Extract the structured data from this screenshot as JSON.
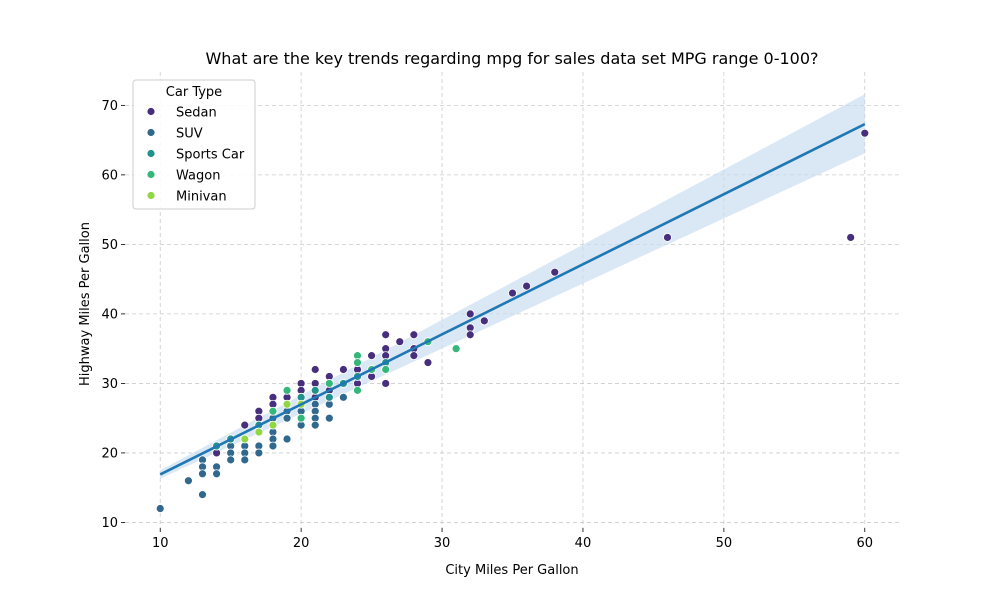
{
  "chart_data": {
    "type": "scatter",
    "title": "What are the key trends regarding mpg for sales data set MPG range 0-100?",
    "xlabel": "City Miles Per Gallon",
    "ylabel": "Highway Miles Per Gallon",
    "xlim": [
      7.5,
      62.5
    ],
    "ylim": [
      9.2,
      74.8
    ],
    "xticks": [
      10,
      20,
      30,
      40,
      50,
      60
    ],
    "yticks": [
      10,
      20,
      30,
      40,
      50,
      60,
      70
    ],
    "grid": true,
    "legend": {
      "title": "Car Type",
      "position": "top-left",
      "entries": [
        "Sedan",
        "SUV",
        "Sports Car",
        "Wagon",
        "Minivan"
      ]
    },
    "colors": {
      "Sedan": "#472f7d",
      "SUV": "#31688e",
      "Sports Car": "#21918c",
      "Wagon": "#35b779",
      "Minivan": "#90d743",
      "regression": "#1f77b4",
      "ci_band": "#c6dbef"
    },
    "series": [
      {
        "name": "Sedan",
        "x": [
          60,
          59,
          46,
          38,
          36,
          35,
          33,
          32,
          32,
          32,
          29,
          28,
          28,
          28,
          27,
          26,
          26,
          26,
          26,
          25,
          25,
          25,
          24,
          24,
          24,
          23,
          23,
          23,
          22,
          22,
          22,
          21,
          21,
          21,
          21,
          20,
          20,
          20,
          19,
          19,
          18,
          18,
          17,
          17,
          16,
          14
        ],
        "y": [
          66,
          51,
          51,
          46,
          44,
          43,
          39,
          40,
          38,
          37,
          33,
          37,
          35,
          34,
          36,
          37,
          35,
          34,
          30,
          34,
          32,
          31,
          32,
          31,
          30,
          32,
          30,
          28,
          31,
          30,
          29,
          32,
          30,
          29,
          28,
          30,
          29,
          28,
          28,
          27,
          28,
          27,
          26,
          25,
          24,
          20
        ]
      },
      {
        "name": "SUV",
        "x": [
          10,
          12,
          13,
          13,
          13,
          13,
          14,
          14,
          14,
          15,
          15,
          15,
          15,
          16,
          16,
          16,
          16,
          17,
          17,
          17,
          17,
          18,
          18,
          18,
          18,
          19,
          19,
          19,
          20,
          20,
          20,
          21,
          21,
          21,
          21,
          22,
          22,
          22,
          23
        ],
        "y": [
          12,
          16,
          19,
          18,
          17,
          14,
          21,
          18,
          17,
          22,
          21,
          20,
          19,
          22,
          21,
          20,
          19,
          24,
          23,
          21,
          20,
          25,
          23,
          22,
          21,
          26,
          25,
          22,
          27,
          26,
          24,
          27,
          26,
          25,
          24,
          28,
          27,
          25,
          28
        ]
      },
      {
        "name": "Sports Car",
        "x": [
          14,
          15,
          17,
          18,
          19,
          20,
          21,
          22,
          23,
          24,
          24,
          25,
          26,
          26
        ],
        "y": [
          21,
          22,
          24,
          26,
          27,
          28,
          29,
          28,
          30,
          31,
          33,
          32,
          33,
          32
        ]
      },
      {
        "name": "Wagon",
        "x": [
          18,
          19,
          20,
          22,
          24,
          24,
          24,
          25,
          26,
          29,
          31
        ],
        "y": [
          26,
          29,
          25,
          30,
          34,
          33,
          29,
          32,
          32,
          36,
          35
        ]
      },
      {
        "name": "Minivan",
        "x": [
          16,
          17,
          18,
          19,
          20
        ],
        "y": [
          22,
          23,
          24,
          27,
          27
        ]
      }
    ],
    "regression": {
      "x": [
        10,
        60
      ],
      "y": [
        16.9,
        67.3
      ],
      "ci_lower": [
        16.3,
        63.1
      ],
      "ci_upper": [
        17.5,
        71.6
      ]
    }
  }
}
